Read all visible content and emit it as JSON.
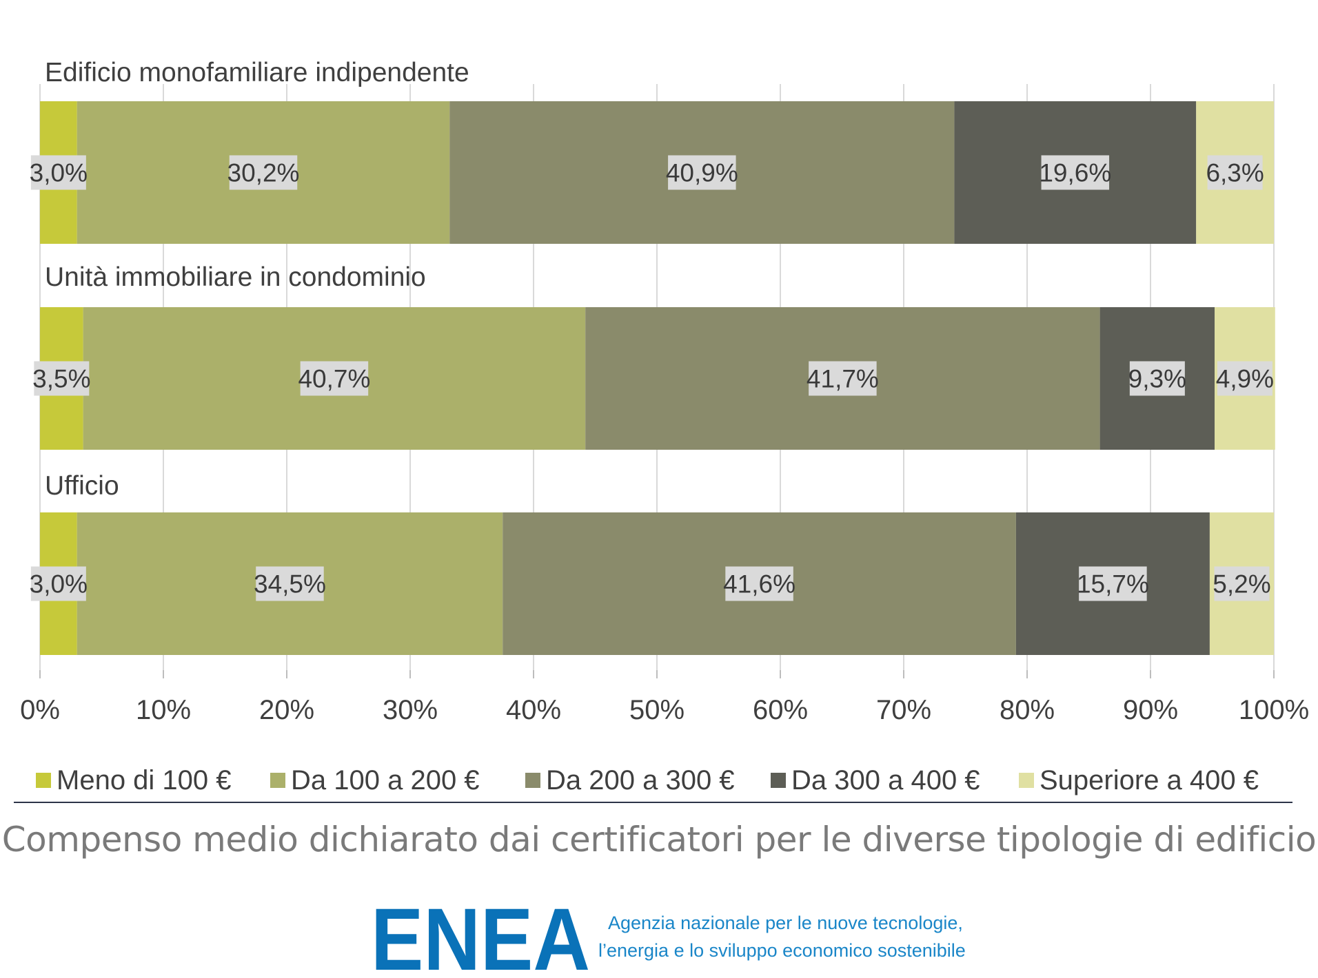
{
  "chart_data": {
    "type": "bar",
    "orientation": "horizontal",
    "stacked": true,
    "categories": [
      "Edificio monofamiliare indipendente",
      "Unità immobiliare in condominio",
      "Ufficio"
    ],
    "series": [
      {
        "name": "Meno di 100 €",
        "color": "#c6c93a",
        "values": [
          3.0,
          3.5,
          3.0
        ],
        "labels": [
          "3,0%",
          "3,5%",
          "3,0%"
        ]
      },
      {
        "name": "Da 100 a 200 €",
        "color": "#abb06a",
        "values": [
          30.2,
          40.7,
          34.5
        ],
        "labels": [
          "30,2%",
          "40,7%",
          "34,5%"
        ]
      },
      {
        "name": "Da 200 a 300 €",
        "color": "#8a8b6b",
        "values": [
          40.9,
          41.7,
          41.6
        ],
        "labels": [
          "40,9%",
          "41,7%",
          "41,6%"
        ]
      },
      {
        "name": "Da 300 a 400 €",
        "color": "#5d5e56",
        "values": [
          19.6,
          9.3,
          15.7
        ],
        "labels": [
          "19,6%",
          "9,3%",
          "15,7%"
        ]
      },
      {
        "name": "Superiore a 400 €",
        "color": "#e0e0a2",
        "values": [
          6.3,
          4.9,
          5.2
        ],
        "labels": [
          "6,3%",
          "4,9%",
          "5,2%"
        ]
      }
    ],
    "xlim": [
      0,
      100
    ],
    "xticks": [
      "0%",
      "10%",
      "20%",
      "30%",
      "40%",
      "50%",
      "60%",
      "70%",
      "80%",
      "90%",
      "100%"
    ],
    "grid": "vertical",
    "legend": "bottom"
  },
  "caption": "Compenso medio dichiarato dai certificatori per le diverse tipologie di edificio",
  "logo": {
    "text": "ENEA",
    "color": "#0a72b8",
    "agency_line1": "Agenzia nazionale per le nuove tecnologie,",
    "agency_line2": "l’energia e lo sviluppo economico sostenibile"
  }
}
